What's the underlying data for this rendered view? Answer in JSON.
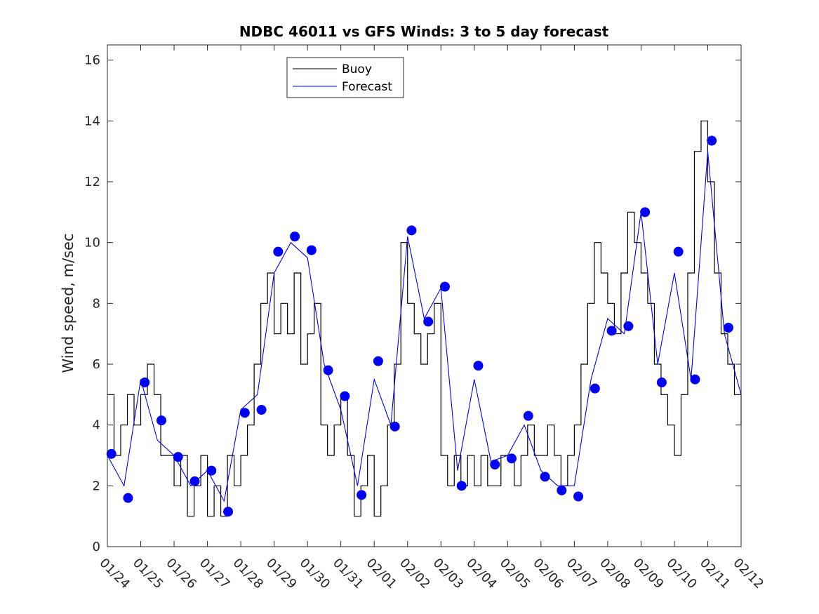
{
  "chart_data": {
    "type": "line",
    "title": "NDBC 46011 vs GFS Winds: 3 to 5 day forecast",
    "xlabel": "",
    "ylabel": "Wind speed, m/sec",
    "ylim": [
      0,
      16.5
    ],
    "yticks": [
      0,
      2,
      4,
      6,
      8,
      10,
      12,
      14,
      16
    ],
    "xlim": [
      0,
      19
    ],
    "xtick_labels": [
      "01/24",
      "01/25",
      "01/26",
      "01/27",
      "01/28",
      "01/29",
      "01/30",
      "01/31",
      "02/01",
      "02/02",
      "02/03",
      "02/04",
      "02/05",
      "02/06",
      "02/07",
      "02/08",
      "02/09",
      "02/10",
      "02/11",
      "02/12"
    ],
    "legend": {
      "position": "top-left",
      "entries": [
        {
          "label": "Buoy",
          "color": "#000000"
        },
        {
          "label": "Forecast",
          "color": "#0000ff"
        }
      ]
    },
    "series": [
      {
        "name": "Buoy",
        "color": "#000000",
        "style": "step",
        "x": [
          0,
          0.2,
          0.4,
          0.6,
          0.8,
          1.0,
          1.2,
          1.4,
          1.6,
          1.8,
          2.0,
          2.2,
          2.4,
          2.6,
          2.8,
          3.0,
          3.2,
          3.4,
          3.6,
          3.8,
          4.0,
          4.2,
          4.4,
          4.6,
          4.8,
          5.0,
          5.2,
          5.4,
          5.6,
          5.8,
          6.0,
          6.2,
          6.4,
          6.6,
          6.8,
          7.0,
          7.2,
          7.4,
          7.6,
          7.8,
          8.0,
          8.2,
          8.4,
          8.6,
          8.8,
          9.0,
          9.2,
          9.4,
          9.6,
          9.8,
          10.0,
          10.2,
          10.4,
          10.6,
          10.8,
          11.0,
          11.2,
          11.4,
          11.6,
          11.8,
          12.0,
          12.2,
          12.4,
          12.6,
          12.8,
          13.0,
          13.2,
          13.4,
          13.6,
          13.8,
          14.0,
          14.2,
          14.4,
          14.6,
          14.8,
          15.0,
          15.2,
          15.4,
          15.6,
          15.8,
          16.0,
          16.2,
          16.4,
          16.6,
          16.8,
          17.0,
          17.2,
          17.4,
          17.6,
          17.8,
          18.0,
          18.2,
          18.4,
          18.6,
          18.8,
          19.0
        ],
        "values": [
          5,
          3,
          4,
          5,
          4,
          5,
          6,
          5,
          3,
          3,
          2,
          3,
          1,
          2,
          3,
          1,
          2,
          1,
          3,
          2,
          3,
          4,
          6,
          8,
          9,
          7,
          8,
          7,
          9,
          6,
          7,
          8,
          4,
          3,
          4,
          5,
          3,
          1,
          2,
          3,
          1,
          2,
          4,
          6,
          10,
          8,
          7,
          6,
          7,
          8,
          3,
          2,
          3,
          2,
          3,
          2,
          3,
          2,
          2,
          3,
          3,
          2,
          3,
          4,
          3,
          3,
          4,
          3,
          2,
          3,
          4,
          6,
          8,
          10,
          9,
          8,
          7,
          9,
          11,
          10,
          9,
          8,
          6,
          5,
          4,
          3,
          5,
          9,
          13,
          14,
          12,
          9,
          7,
          6,
          5,
          4
        ]
      },
      {
        "name": "Forecast",
        "color": "#0000ff",
        "style": "line",
        "x": [
          0,
          0.5,
          1.0,
          1.5,
          2.0,
          2.5,
          3.0,
          3.5,
          4.0,
          4.5,
          5.0,
          5.5,
          6.0,
          6.5,
          7.0,
          7.5,
          8.0,
          8.5,
          9.0,
          9.5,
          10.0,
          10.5,
          11.0,
          11.5,
          12.0,
          12.5,
          13.0,
          13.5,
          14.0,
          14.5,
          15.0,
          15.5,
          16.0,
          16.5,
          17.0,
          17.5,
          18.0,
          18.5,
          19.0
        ],
        "values": [
          3.0,
          2.0,
          5.5,
          3.5,
          3.0,
          2.0,
          2.5,
          1.5,
          4.5,
          5.0,
          9.0,
          10.0,
          9.5,
          6.0,
          4.5,
          2.0,
          5.5,
          4.0,
          10.2,
          7.5,
          8.5,
          2.5,
          5.5,
          2.8,
          3.0,
          4.0,
          2.5,
          2.0,
          2.0,
          5.5,
          7.5,
          7.0,
          11.0,
          6.0,
          9.0,
          5.5,
          13.0,
          7.0,
          5.0
        ]
      },
      {
        "name": "Forecast markers",
        "color": "#0000ff",
        "style": "markers",
        "x": [
          0.12,
          0.62,
          1.12,
          1.62,
          2.12,
          2.62,
          3.12,
          3.62,
          4.12,
          4.62,
          5.12,
          5.62,
          6.12,
          6.62,
          7.12,
          7.62,
          8.12,
          8.62,
          9.12,
          9.62,
          10.12,
          10.62,
          11.12,
          11.62,
          12.12,
          12.62,
          13.12,
          13.62,
          14.12,
          14.62,
          15.12,
          15.62,
          16.12,
          16.62,
          17.12,
          17.62,
          18.12,
          18.62
        ],
        "values": [
          3.05,
          1.6,
          5.4,
          4.15,
          2.95,
          2.15,
          2.5,
          1.15,
          4.4,
          4.5,
          9.7,
          10.2,
          9.75,
          5.8,
          4.95,
          1.7,
          6.1,
          3.95,
          10.4,
          7.4,
          8.55,
          2.0,
          5.95,
          2.7,
          2.9,
          4.3,
          2.3,
          1.85,
          1.65,
          5.2,
          7.1,
          7.25,
          11.0,
          5.4,
          9.7,
          5.5,
          13.35,
          7.2
        ]
      }
    ]
  }
}
